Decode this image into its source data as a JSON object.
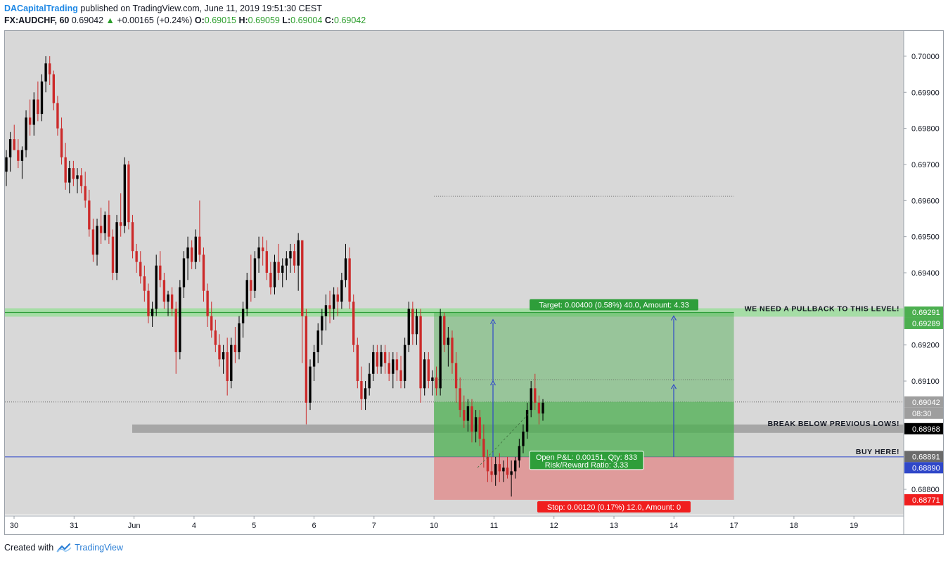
{
  "header": {
    "author": "DACapitalTrading",
    "published": "published on TradingView.com, June 11, 2019 19:51:30 CEST",
    "symbol": "FX:AUDCHF, 60",
    "last": "0.69042",
    "change": "+0.00165 (+0.24%)",
    "open_label": "O:",
    "open": "0.69015",
    "high_label": "H:",
    "high": "0.69059",
    "low_label": "L:",
    "low": "0.69004",
    "close_label": "C:",
    "close": "0.69042"
  },
  "footer": {
    "created_with": "Created with",
    "brand": "TradingView",
    "logo_icon": "tradingview-logo-icon"
  },
  "colors": {
    "background": "#d8d8d8",
    "up": "#000000",
    "down": "#cc2a2a",
    "target_zone": "#4caf50",
    "stop_zone": "#e57373",
    "buy_line": "#2f47c9",
    "pullback_band": "#7ee27e",
    "break_band": "#9e9e9e"
  },
  "chart_data": {
    "type": "candlestick",
    "symbol": "FX:AUDCHF",
    "interval": "60",
    "ylim": [
      0.6873,
      0.7007
    ],
    "x_tick_labels": [
      "30",
      "31",
      "Jun",
      "4",
      "5",
      "6",
      "7",
      "10",
      "11",
      "12",
      "13",
      "14",
      "17",
      "18",
      "19"
    ],
    "y_tick_labels": [
      "0.70000",
      "0.69900",
      "0.69800",
      "0.69700",
      "0.69600",
      "0.69500",
      "0.69400",
      "0.69200",
      "0.69100",
      "0.68800"
    ],
    "price_markers": [
      {
        "text": "0.69291",
        "value": 0.69291,
        "color": "#4caf50"
      },
      {
        "text": "0.69289",
        "value": 0.69289,
        "color": "#4caf50"
      },
      {
        "text": "0.69042",
        "value": 0.69042,
        "color": "#9e9e9e"
      },
      {
        "text": "08:30",
        "value": 0.69015,
        "color": "#9e9e9e"
      },
      {
        "text": "0.68968",
        "value": 0.68968,
        "color": "#000000"
      },
      {
        "text": "0.68891",
        "value": 0.68891,
        "color": "#6b6b6b"
      },
      {
        "text": "0.68890",
        "value": 0.6889,
        "color": "#2f47c9"
      },
      {
        "text": "0.68771",
        "value": 0.68771,
        "color": "#f01e1e"
      }
    ],
    "annotations": {
      "pullback_text": "WE NEED A PULLBACK TO THIS LEVEL!",
      "break_text": "BREAK BELOW PREVIOUS LOWS!",
      "buy_text": "BUY HERE!",
      "target_text": "Target: 0.00400 (0.58%) 40.0, Amount: 4.33",
      "stop_text": "Stop: 0.00120 (0.17%) 12.0, Amount: 0",
      "pnl_text": "Open P&L: 0.00151, Qty: 833",
      "rr_text": "Risk/Reward Ratio: 3.33"
    },
    "levels": {
      "pullback": 0.6929,
      "break": 0.68968,
      "buy": 0.6889,
      "entry": 0.6889,
      "target": 0.6929,
      "stop": 0.68771,
      "current": 0.69042,
      "dotted_high": 0.69612,
      "dotted_mid": 0.69104
    },
    "position_days": [
      10,
      17
    ],
    "candles": [
      [
        0.6968,
        0.6974,
        0.6964,
        0.6972
      ],
      [
        0.6972,
        0.6979,
        0.6968,
        0.6977
      ],
      [
        0.6977,
        0.6981,
        0.6974,
        0.6974
      ],
      [
        0.6974,
        0.6977,
        0.6969,
        0.6971
      ],
      [
        0.6971,
        0.6975,
        0.6966,
        0.6974
      ],
      [
        0.6974,
        0.6985,
        0.6972,
        0.6983
      ],
      [
        0.6983,
        0.6988,
        0.6978,
        0.6981
      ],
      [
        0.6981,
        0.699,
        0.6978,
        0.6988
      ],
      [
        0.6988,
        0.6993,
        0.6982,
        0.6984
      ],
      [
        0.6984,
        0.6995,
        0.6982,
        0.6993
      ],
      [
        0.6993,
        0.7,
        0.699,
        0.6998
      ],
      [
        0.6998,
        0.7,
        0.6992,
        0.6995
      ],
      [
        0.6995,
        0.6996,
        0.6985,
        0.6987
      ],
      [
        0.6987,
        0.6989,
        0.6978,
        0.698
      ],
      [
        0.698,
        0.6983,
        0.697,
        0.6972
      ],
      [
        0.6972,
        0.6976,
        0.6963,
        0.6965
      ],
      [
        0.6965,
        0.6971,
        0.6962,
        0.6969
      ],
      [
        0.6969,
        0.6971,
        0.6964,
        0.6966
      ],
      [
        0.6966,
        0.6969,
        0.6962,
        0.6967
      ],
      [
        0.6967,
        0.6969,
        0.6962,
        0.6964
      ],
      [
        0.6964,
        0.6968,
        0.6958,
        0.696
      ],
      [
        0.696,
        0.6963,
        0.695,
        0.6952
      ],
      [
        0.6952,
        0.6955,
        0.6943,
        0.6945
      ],
      [
        0.6945,
        0.6955,
        0.6942,
        0.6953
      ],
      [
        0.6953,
        0.6958,
        0.6948,
        0.6951
      ],
      [
        0.6951,
        0.6957,
        0.6949,
        0.6956
      ],
      [
        0.6956,
        0.696,
        0.6948,
        0.695
      ],
      [
        0.695,
        0.6952,
        0.6938,
        0.694
      ],
      [
        0.694,
        0.6956,
        0.6938,
        0.6954
      ],
      [
        0.6954,
        0.6962,
        0.695,
        0.6953
      ],
      [
        0.6953,
        0.6972,
        0.6951,
        0.697
      ],
      [
        0.697,
        0.6971,
        0.6952,
        0.6954
      ],
      [
        0.6954,
        0.6956,
        0.6944,
        0.6946
      ],
      [
        0.6946,
        0.6948,
        0.694,
        0.6943
      ],
      [
        0.6943,
        0.6946,
        0.6937,
        0.6939
      ],
      [
        0.6939,
        0.6942,
        0.6932,
        0.6935
      ],
      [
        0.6935,
        0.6937,
        0.6926,
        0.6928
      ],
      [
        0.6928,
        0.6932,
        0.6925,
        0.693
      ],
      [
        0.693,
        0.6945,
        0.6928,
        0.6942
      ],
      [
        0.6942,
        0.6946,
        0.6936,
        0.6938
      ],
      [
        0.6938,
        0.694,
        0.693,
        0.6932
      ],
      [
        0.6932,
        0.6935,
        0.6928,
        0.6934
      ],
      [
        0.6934,
        0.6936,
        0.6928,
        0.693
      ],
      [
        0.693,
        0.6932,
        0.6912,
        0.6918
      ],
      [
        0.6918,
        0.6938,
        0.6916,
        0.6936
      ],
      [
        0.6936,
        0.6946,
        0.6933,
        0.6944
      ],
      [
        0.6944,
        0.695,
        0.6938,
        0.6947
      ],
      [
        0.6947,
        0.6949,
        0.6941,
        0.6943
      ],
      [
        0.6943,
        0.6952,
        0.6941,
        0.695
      ],
      [
        0.695,
        0.696,
        0.6943,
        0.6945
      ],
      [
        0.6945,
        0.6947,
        0.6932,
        0.6935
      ],
      [
        0.6935,
        0.6937,
        0.6925,
        0.6928
      ],
      [
        0.6928,
        0.6932,
        0.6922,
        0.6924
      ],
      [
        0.6924,
        0.6927,
        0.6918,
        0.692
      ],
      [
        0.692,
        0.6923,
        0.6914,
        0.6916
      ],
      [
        0.6916,
        0.692,
        0.6912,
        0.6918
      ],
      [
        0.6918,
        0.6922,
        0.6906,
        0.691
      ],
      [
        0.691,
        0.6922,
        0.6908,
        0.692
      ],
      [
        0.692,
        0.6925,
        0.6915,
        0.6918
      ],
      [
        0.6918,
        0.6928,
        0.6916,
        0.6926
      ],
      [
        0.6926,
        0.6932,
        0.6922,
        0.693
      ],
      [
        0.693,
        0.694,
        0.6928,
        0.6938
      ],
      [
        0.6938,
        0.6945,
        0.6932,
        0.6935
      ],
      [
        0.6935,
        0.6946,
        0.6933,
        0.6944
      ],
      [
        0.6944,
        0.695,
        0.694,
        0.6947
      ],
      [
        0.6947,
        0.695,
        0.6942,
        0.6946
      ],
      [
        0.6946,
        0.6949,
        0.6938,
        0.694
      ],
      [
        0.694,
        0.6943,
        0.6934,
        0.6936
      ],
      [
        0.6936,
        0.6945,
        0.6934,
        0.6943
      ],
      [
        0.6943,
        0.6948,
        0.6938,
        0.694
      ],
      [
        0.694,
        0.6944,
        0.6936,
        0.6942
      ],
      [
        0.6942,
        0.6946,
        0.6938,
        0.6944
      ],
      [
        0.6944,
        0.6948,
        0.694,
        0.6946
      ],
      [
        0.6946,
        0.6948,
        0.694,
        0.6942
      ],
      [
        0.6942,
        0.6951,
        0.6935,
        0.6949
      ],
      [
        0.6949,
        0.6948,
        0.6915,
        0.6928
      ],
      [
        0.6928,
        0.693,
        0.6898,
        0.6904
      ],
      [
        0.6904,
        0.6916,
        0.6902,
        0.6914
      ],
      [
        0.6914,
        0.692,
        0.691,
        0.6918
      ],
      [
        0.6918,
        0.6926,
        0.6915,
        0.6924
      ],
      [
        0.6924,
        0.693,
        0.692,
        0.6928
      ],
      [
        0.6928,
        0.6934,
        0.6924,
        0.6931
      ],
      [
        0.6931,
        0.6935,
        0.6926,
        0.693
      ],
      [
        0.693,
        0.6936,
        0.6927,
        0.6934
      ],
      [
        0.6934,
        0.6936,
        0.6928,
        0.6932
      ],
      [
        0.6932,
        0.694,
        0.693,
        0.6938
      ],
      [
        0.6938,
        0.6948,
        0.6936,
        0.6944
      ],
      [
        0.6944,
        0.6947,
        0.693,
        0.6932
      ],
      [
        0.6932,
        0.6934,
        0.6918,
        0.692
      ],
      [
        0.692,
        0.6922,
        0.6908,
        0.691
      ],
      [
        0.691,
        0.6914,
        0.6902,
        0.6905
      ],
      [
        0.6905,
        0.691,
        0.6902,
        0.6908
      ],
      [
        0.6908,
        0.6915,
        0.6906,
        0.6912
      ],
      [
        0.6912,
        0.692,
        0.691,
        0.6918
      ],
      [
        0.6918,
        0.692,
        0.6912,
        0.6914
      ],
      [
        0.6914,
        0.692,
        0.6912,
        0.6918
      ],
      [
        0.6918,
        0.692,
        0.6912,
        0.6915
      ],
      [
        0.6915,
        0.6918,
        0.691,
        0.6912
      ],
      [
        0.6912,
        0.6918,
        0.6908,
        0.6916
      ],
      [
        0.6916,
        0.6918,
        0.691,
        0.6913
      ],
      [
        0.6913,
        0.6917,
        0.6908,
        0.691
      ],
      [
        0.691,
        0.6922,
        0.6908,
        0.692
      ],
      [
        0.692,
        0.6932,
        0.6918,
        0.693
      ],
      [
        0.693,
        0.6932,
        0.692,
        0.6923
      ],
      [
        0.6923,
        0.693,
        0.692,
        0.6928
      ],
      [
        0.6928,
        0.693,
        0.6904,
        0.6908
      ],
      [
        0.6908,
        0.6918,
        0.6906,
        0.6916
      ],
      [
        0.6916,
        0.6918,
        0.6908,
        0.691
      ],
      [
        0.691,
        0.6913,
        0.6906,
        0.6911
      ],
      [
        0.6911,
        0.6914,
        0.6906,
        0.6908
      ],
      [
        0.6908,
        0.693,
        0.6906,
        0.6928
      ],
      [
        0.6928,
        0.6929,
        0.6918,
        0.692
      ],
      [
        0.692,
        0.6925,
        0.6914,
        0.6922
      ],
      [
        0.6922,
        0.6924,
        0.6912,
        0.6915
      ],
      [
        0.6915,
        0.6918,
        0.6904,
        0.6908
      ],
      [
        0.6908,
        0.6911,
        0.69,
        0.6902
      ],
      [
        0.6902,
        0.6906,
        0.6897,
        0.6899
      ],
      [
        0.6899,
        0.6905,
        0.6896,
        0.6903
      ],
      [
        0.6903,
        0.6905,
        0.6893,
        0.6896
      ],
      [
        0.6896,
        0.6902,
        0.6893,
        0.69
      ],
      [
        0.69,
        0.6902,
        0.6892,
        0.6894
      ],
      [
        0.6894,
        0.6898,
        0.6886,
        0.6889
      ],
      [
        0.6889,
        0.6891,
        0.6882,
        0.6885
      ],
      [
        0.6885,
        0.6889,
        0.6882,
        0.6884
      ],
      [
        0.6884,
        0.6889,
        0.6881,
        0.6887
      ],
      [
        0.6887,
        0.689,
        0.6882,
        0.6885
      ],
      [
        0.6885,
        0.6888,
        0.6882,
        0.6886
      ],
      [
        0.6886,
        0.6889,
        0.6883,
        0.6884
      ],
      [
        0.6884,
        0.6888,
        0.6878,
        0.6885
      ],
      [
        0.6885,
        0.6889,
        0.6883,
        0.6888
      ],
      [
        0.6888,
        0.6894,
        0.6886,
        0.6892
      ],
      [
        0.6892,
        0.6898,
        0.689,
        0.6896
      ],
      [
        0.6896,
        0.6904,
        0.6894,
        0.6902
      ],
      [
        0.6902,
        0.691,
        0.69,
        0.6908
      ],
      [
        0.6908,
        0.6912,
        0.6902,
        0.6904
      ],
      [
        0.6904,
        0.6906,
        0.6898,
        0.6901
      ],
      [
        0.6901,
        0.6905,
        0.6899,
        0.6904
      ]
    ]
  }
}
